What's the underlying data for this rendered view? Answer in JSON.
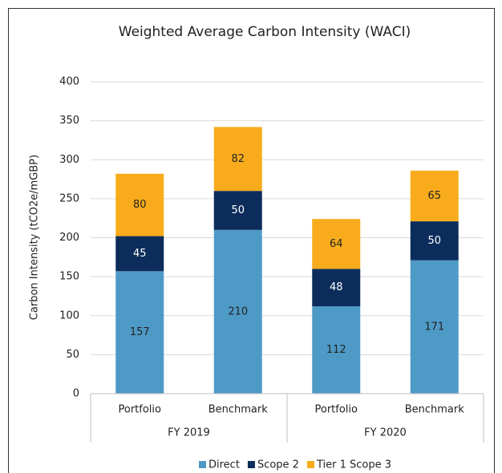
{
  "chart_data": {
    "type": "stacked_bar",
    "title": "Weighted Average Carbon Intensity (WACI)",
    "y_label": "Carbon Intensity (tCO2e/mGBP)",
    "categories": [
      "Portfolio",
      "Benchmark",
      "Portfolio",
      "Benchmark"
    ],
    "groups": [
      "FY 2019",
      "FY 2020"
    ],
    "series": [
      {
        "name": "Direct",
        "color": "#4e9ac7",
        "values": [
          157,
          210,
          112,
          171
        ]
      },
      {
        "name": "Scope 2",
        "color": "#0c2d5b",
        "values": [
          45,
          50,
          48,
          50
        ]
      },
      {
        "name": "Tier 1 Scope 3",
        "color": "#f8ac1c",
        "values": [
          80,
          82,
          64,
          65
        ]
      }
    ],
    "ylim": [
      0,
      400
    ],
    "yticks": [
      0,
      50,
      100,
      150,
      200,
      250,
      300,
      350,
      400
    ],
    "grid": true,
    "legend": "bottom"
  }
}
